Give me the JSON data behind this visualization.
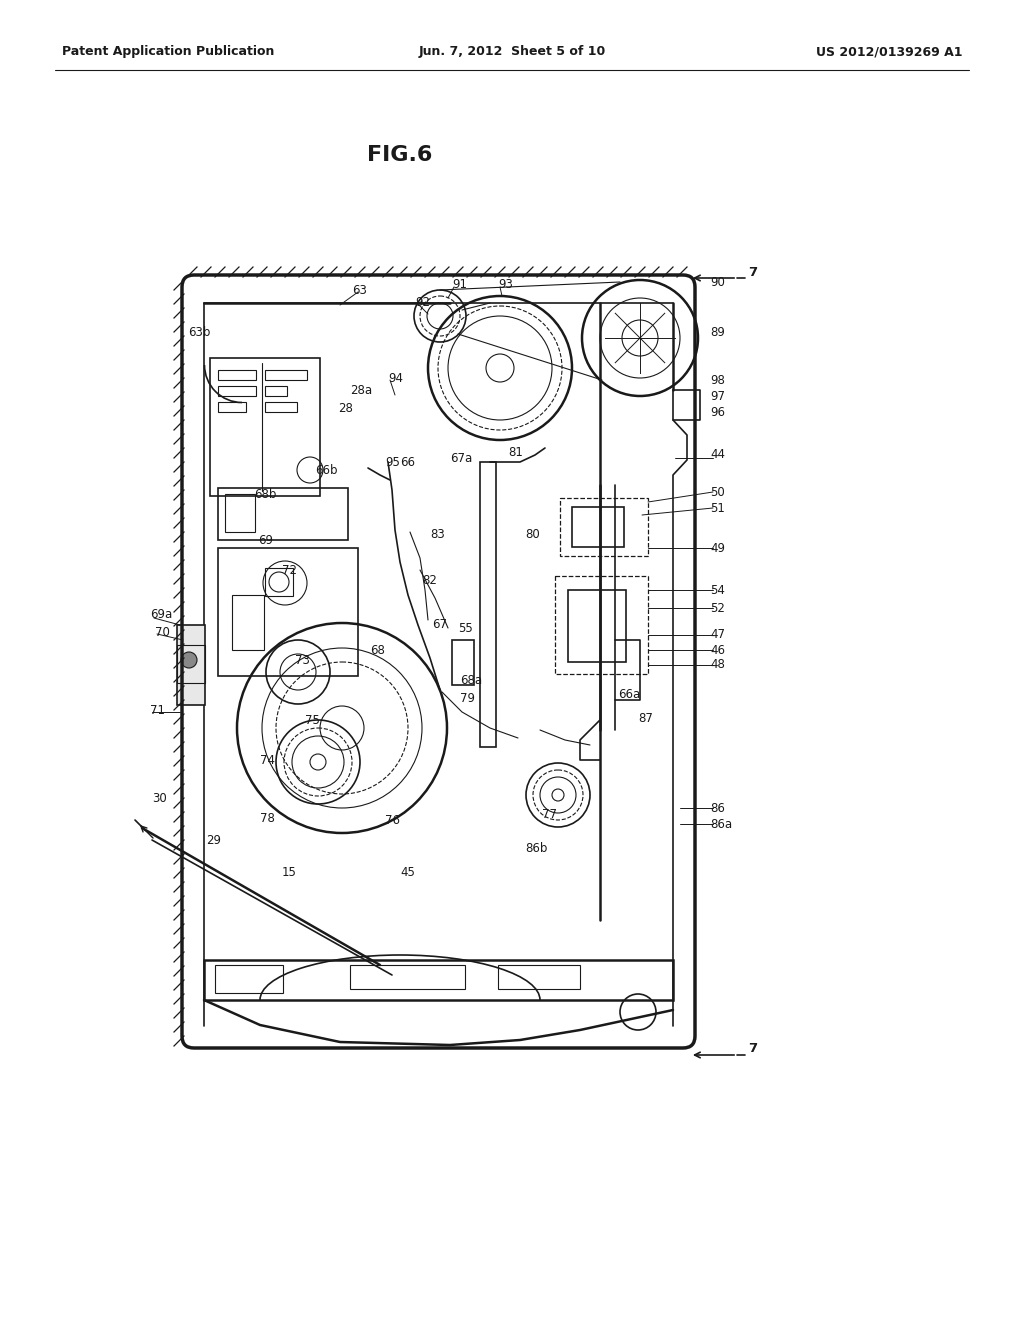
{
  "title": "FIG.6",
  "header_left": "Patent Application Publication",
  "header_center": "Jun. 7, 2012  Sheet 5 of 10",
  "header_right": "US 2012/0139269 A1",
  "bg_color": "#ffffff",
  "line_color": "#1a1a1a",
  "fig_width": 10.24,
  "fig_height": 13.2
}
